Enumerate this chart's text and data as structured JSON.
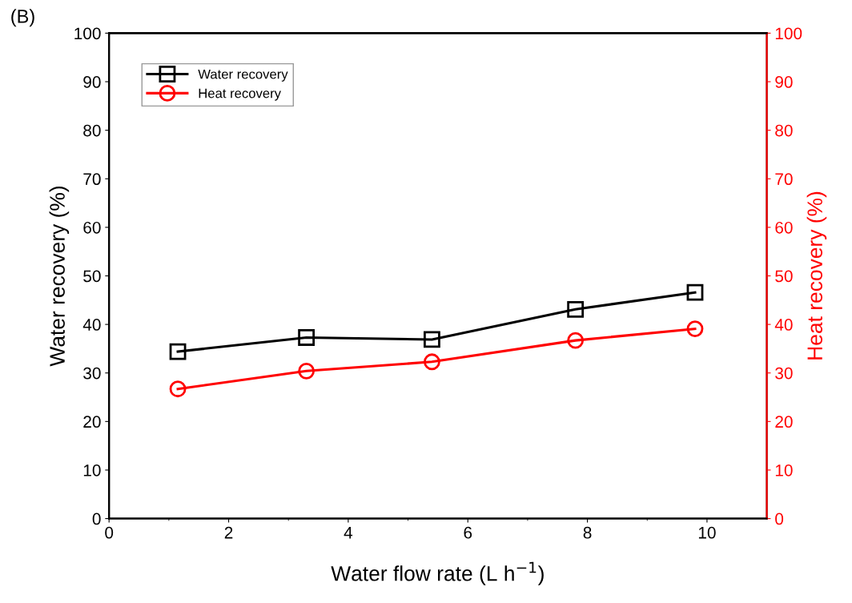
{
  "chart_data": {
    "type": "line",
    "x": [
      1.15,
      3.3,
      5.4,
      7.8,
      9.8
    ],
    "series": [
      {
        "name": "Water recovery",
        "color": "#000000",
        "marker": "square",
        "values": [
          34.4,
          37.3,
          36.9,
          43.1,
          46.6
        ]
      },
      {
        "name": "Heat recovery",
        "color": "#ff0000",
        "marker": "circle",
        "axis": "y2",
        "values": [
          26.7,
          30.4,
          32.3,
          36.7,
          39.1
        ]
      }
    ],
    "xlabel": "Water flow rate (L h$^{−1}$)",
    "ylabel": "Water recovery (%)",
    "y2label": "Heat recovery (%)",
    "xlim": [
      0,
      11
    ],
    "xticks": [
      0,
      2,
      4,
      6,
      8,
      10
    ],
    "ylim": [
      0,
      100
    ],
    "yticks": [
      0,
      10,
      20,
      30,
      40,
      50,
      60,
      70,
      80,
      90,
      100
    ],
    "y2lim": [
      0,
      100
    ],
    "y2ticks": [
      0,
      10,
      20,
      30,
      40,
      50,
      60,
      70,
      80,
      90,
      100
    ],
    "annotations": [
      "(B)"
    ],
    "legend": "top left",
    "grid": false,
    "line_style": "solid"
  }
}
